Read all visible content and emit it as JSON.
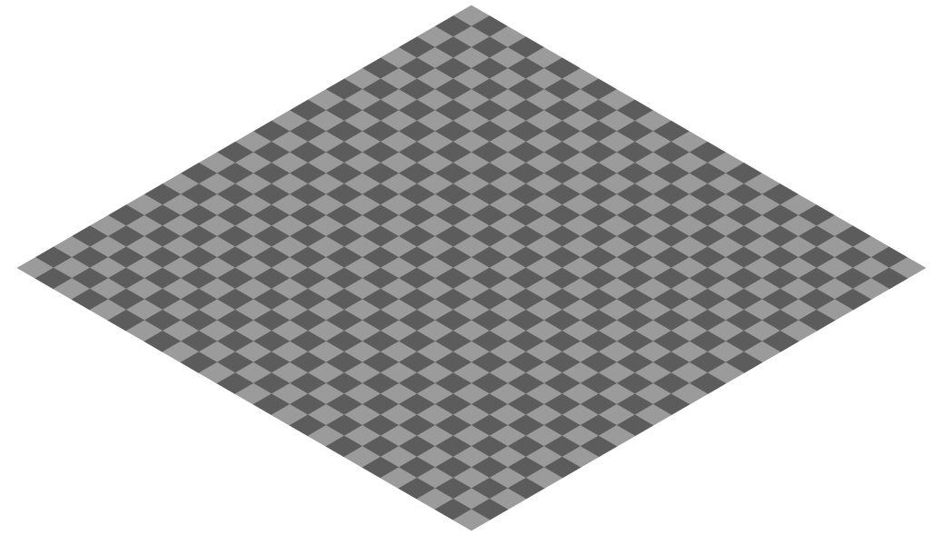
{
  "board": {
    "rows": 25,
    "cols": 25,
    "colors": {
      "light": "#9b9b9b",
      "dark": "#5c5c5c",
      "background": "#ffffff"
    },
    "top_left_tile": "light"
  }
}
